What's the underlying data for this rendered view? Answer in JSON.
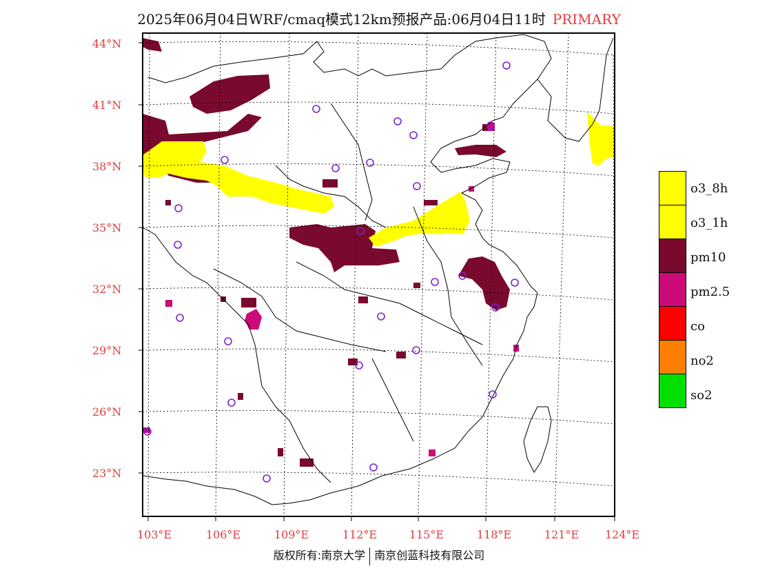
{
  "title": {
    "main": "2025年06月04日WRF/cmaq模式12km预报产品:06月04日11时",
    "tag": "PRIMARY"
  },
  "axes": {
    "lat_labels": [
      "44°N",
      "41°N",
      "38°N",
      "35°N",
      "32°N",
      "29°N",
      "26°N",
      "23°N"
    ],
    "lon_labels": [
      "103°E",
      "106°E",
      "109°E",
      "112°E",
      "115°E",
      "118°E",
      "121°E",
      "124°E"
    ]
  },
  "legend": [
    {
      "label": "o3_8h",
      "color": "#ffff00"
    },
    {
      "label": "o3_1h",
      "color": "#ffff00"
    },
    {
      "label": "pm10",
      "color": "#7a0a2d"
    },
    {
      "label": "pm2.5",
      "color": "#cc0a78"
    },
    {
      "label": "co",
      "color": "#ff0000"
    },
    {
      "label": "no2",
      "color": "#ff7f00"
    },
    {
      "label": "so2",
      "color": "#00e000"
    }
  ],
  "copyright": {
    "left": "版权所有:南京大学",
    "right": "南京创蓝科技有限公司"
  },
  "colors": {
    "axis_label": "#e23b3b",
    "pm10": "#7a0a2d",
    "pm25": "#cc0a78",
    "o3": "#ffff00",
    "station_marker": "#7a22d6"
  }
}
